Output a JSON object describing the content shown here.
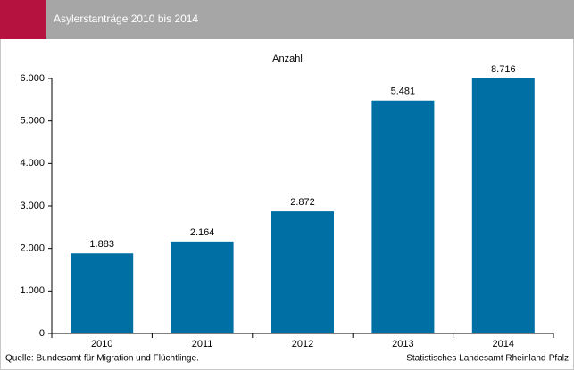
{
  "chart_data": {
    "type": "bar",
    "title": "Asylerstanträge 2010 bis 2014",
    "y_label": "Anzahl",
    "categories": [
      "2010",
      "2011",
      "2012",
      "2013",
      "2014"
    ],
    "values": [
      1883,
      2164,
      2872,
      5481,
      8716
    ],
    "value_labels": [
      "1.883",
      "2.164",
      "2.872",
      "5.481",
      "8.716"
    ],
    "color": "#006fa3",
    "ylim": [
      0,
      6000
    ],
    "yticks": [
      0,
      {
        "value": 1000,
        "label": "1.000"
      },
      {
        "value": 2000,
        "label": "2.000"
      },
      {
        "value": 3000,
        "label": "3.000"
      },
      {
        "value": 4000,
        "label": "4.000"
      },
      {
        "value": 5000,
        "label": "5.000"
      },
      {
        "value": 6000,
        "label": "6.000"
      }
    ],
    "grid": false,
    "source": "Quelle: Bundesamt für Migration und Flüchtlinge.",
    "credit": "Statistisches Landesamt Rheinland-Pfalz"
  }
}
